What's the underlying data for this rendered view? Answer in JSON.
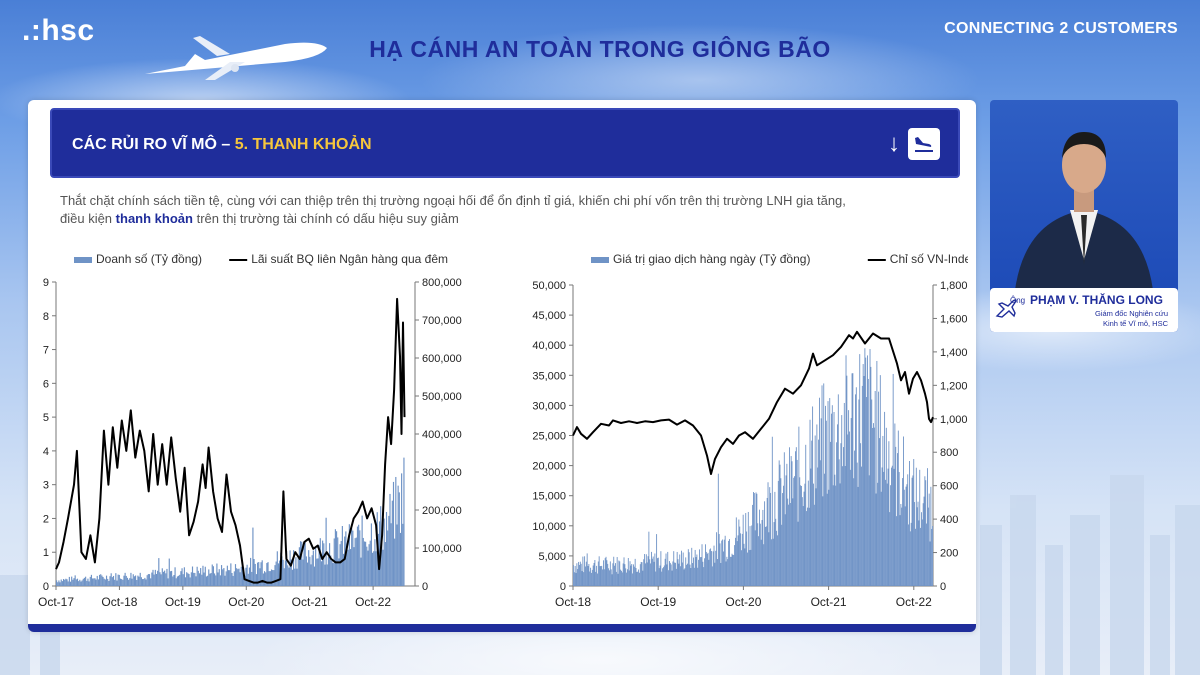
{
  "header": {
    "logo": ".:hsc",
    "title": "HẠ CÁNH AN TOÀN TRONG GIÔNG BÃO",
    "brand": "CONNECTING 2 CUSTOMERS"
  },
  "slide": {
    "banner_prefix": "CÁC RỦI RO VĨ MÔ –",
    "banner_highlight": "5. THANH KHOẢN",
    "desc_line1": "Thắt chặt chính sách tiền tệ, cùng với can thiệp trên thị trường ngoại hối để ổn định tỉ giá, khiến chi phí vốn trên thị trường LNH gia tăng,",
    "desc_line2_a": "điều kiện",
    "desc_line2_bold": "thanh khoản",
    "desc_line2_b": "trên thị trường tài chính có dấu hiệu suy giảm"
  },
  "speaker": {
    "honorific": "Ông",
    "name": "PHẠM V. THĂNG LONG",
    "role_line1": "Giám đốc Nghiên cứu",
    "role_line2": "Kinh tế Vĩ mô, HSC"
  },
  "colors": {
    "navy": "#1f2d9b",
    "bar": "#6f93c6",
    "line": "#000000",
    "highlight": "#f6c63c"
  },
  "chart_data": [
    {
      "type": "bar+line",
      "legend": [
        "Doanh số (Tỷ đồng)",
        "Lãi suất BQ liên Ngân hàng qua đêm"
      ],
      "x_ticks": [
        "Oct-17",
        "Oct-18",
        "Oct-19",
        "Oct-20",
        "Oct-21",
        "Oct-22"
      ],
      "y_left": {
        "min": 0,
        "max": 9,
        "ticks": [
          "0",
          "1",
          "2",
          "3",
          "4",
          "5",
          "6",
          "7",
          "8",
          "9"
        ]
      },
      "y_right": {
        "min": 0,
        "max": 800000,
        "ticks": [
          "0",
          "100,000",
          "200,000",
          "300,000",
          "400,000",
          "500,000",
          "600,000",
          "700,000",
          "800,000"
        ]
      },
      "line_series": {
        "name": "Lãi suất BQ liên Ngân hàng qua đêm",
        "axis": "left",
        "points": [
          [
            0,
            0.5
          ],
          [
            0.1,
            0.7
          ],
          [
            0.25,
            1.3
          ],
          [
            0.4,
            2.0
          ],
          [
            0.6,
            3.0
          ],
          [
            0.7,
            4.0
          ],
          [
            0.85,
            1.0
          ],
          [
            1.0,
            0.8
          ],
          [
            1.15,
            1.5
          ],
          [
            1.3,
            0.7
          ],
          [
            1.45,
            2.0
          ],
          [
            1.6,
            4.6
          ],
          [
            1.75,
            3.0
          ],
          [
            1.9,
            4.7
          ],
          [
            2.05,
            3.5
          ],
          [
            2.2,
            4.9
          ],
          [
            2.35,
            4.0
          ],
          [
            2.5,
            5.2
          ],
          [
            2.65,
            3.8
          ],
          [
            2.8,
            4.6
          ],
          [
            2.95,
            4.0
          ],
          [
            3.1,
            2.8
          ],
          [
            3.25,
            4.5
          ],
          [
            3.4,
            3.0
          ],
          [
            3.55,
            4.2
          ],
          [
            3.7,
            3.0
          ],
          [
            3.85,
            4.4
          ],
          [
            4.0,
            3.2
          ],
          [
            4.15,
            2.2
          ],
          [
            4.3,
            3.5
          ],
          [
            4.45,
            1.5
          ],
          [
            4.6,
            1.9
          ],
          [
            4.75,
            2.5
          ],
          [
            4.9,
            3.6
          ],
          [
            5.0,
            2.9
          ],
          [
            5.1,
            4.1
          ],
          [
            5.25,
            2.8
          ],
          [
            5.4,
            2.0
          ],
          [
            5.55,
            1.6
          ],
          [
            5.7,
            3.3
          ],
          [
            5.85,
            2.2
          ],
          [
            6.0,
            1.8
          ],
          [
            6.15,
            1.2
          ],
          [
            6.3,
            0.2
          ],
          [
            6.45,
            0.15
          ],
          [
            6.6,
            0.1
          ],
          [
            6.75,
            0.1
          ],
          [
            6.9,
            0.15
          ],
          [
            7.05,
            0.1
          ],
          [
            7.2,
            0.1
          ],
          [
            7.35,
            0.15
          ],
          [
            7.5,
            0.2
          ],
          [
            7.6,
            2.8
          ],
          [
            7.7,
            0.8
          ],
          [
            7.85,
            0.6
          ],
          [
            8.0,
            1.0
          ],
          [
            8.15,
            0.8
          ],
          [
            8.3,
            1.3
          ],
          [
            8.45,
            1.4
          ],
          [
            8.6,
            1.1
          ],
          [
            8.75,
            1.2
          ],
          [
            8.9,
            0.8
          ],
          [
            9.05,
            1.0
          ],
          [
            9.2,
            0.8
          ],
          [
            9.35,
            0.7
          ],
          [
            9.5,
            0.7
          ],
          [
            9.65,
            0.8
          ],
          [
            9.8,
            1.5
          ],
          [
            9.95,
            2.0
          ],
          [
            10.1,
            2.2
          ],
          [
            10.25,
            2.5
          ],
          [
            10.4,
            2.0
          ],
          [
            10.55,
            2.3
          ],
          [
            10.7,
            1.8
          ],
          [
            10.8,
            0.5
          ],
          [
            10.9,
            1.5
          ],
          [
            11.0,
            3.6
          ],
          [
            11.1,
            5.0
          ],
          [
            11.2,
            4.2
          ],
          [
            11.3,
            5.8
          ],
          [
            11.4,
            8.5
          ],
          [
            11.5,
            6.8
          ],
          [
            11.55,
            4.5
          ],
          [
            11.6,
            7.8
          ],
          [
            11.65,
            5.0
          ]
        ]
      },
      "bar_series": {
        "name": "Doanh số (Tỷ đồng)",
        "axis": "right",
        "profile": [
          [
            0,
            15000
          ],
          [
            1.0,
            20000
          ],
          [
            2.0,
            25000
          ],
          [
            3.0,
            30000
          ],
          [
            4.0,
            35000
          ],
          [
            5.0,
            40000
          ],
          [
            6.0,
            45000
          ],
          [
            7.0,
            60000
          ],
          [
            8.0,
            80000
          ],
          [
            9.0,
            100000
          ],
          [
            10.0,
            120000
          ],
          [
            11.0,
            160000
          ],
          [
            11.5,
            220000
          ],
          [
            11.65,
            280000
          ]
        ]
      }
    },
    {
      "type": "area+line",
      "legend": [
        "Giá trị giao dịch hàng ngày (Tỷ đồng)",
        "Chỉ số VN-Index"
      ],
      "x_ticks": [
        "Oct-18",
        "Oct-19",
        "Oct-20",
        "Oct-21",
        "Oct-22"
      ],
      "y_left": {
        "min": 0,
        "max": 50000,
        "ticks": [
          "0",
          "5,000",
          "10,000",
          "15,000",
          "20,000",
          "25,000",
          "30,000",
          "35,000",
          "40,000",
          "45,000",
          "50,000"
        ]
      },
      "y_right": {
        "min": 0,
        "max": 1800,
        "ticks": [
          "0",
          "200",
          "400",
          "600",
          "800",
          "1,000",
          "1,200",
          "1,400",
          "1,600",
          "1,800"
        ]
      },
      "line_series": {
        "name": "Chỉ số VN-Index",
        "axis": "right",
        "points": [
          [
            0,
            900
          ],
          [
            0.1,
            950
          ],
          [
            0.2,
            910
          ],
          [
            0.35,
            880
          ],
          [
            0.5,
            920
          ],
          [
            0.7,
            970
          ],
          [
            0.9,
            960
          ],
          [
            1.0,
            990
          ],
          [
            1.2,
            975
          ],
          [
            1.4,
            985
          ],
          [
            1.6,
            975
          ],
          [
            1.8,
            985
          ],
          [
            2.0,
            980
          ],
          [
            2.2,
            990
          ],
          [
            2.4,
            995
          ],
          [
            2.6,
            965
          ],
          [
            2.8,
            990
          ],
          [
            3.0,
            960
          ],
          [
            3.2,
            900
          ],
          [
            3.35,
            780
          ],
          [
            3.45,
            670
          ],
          [
            3.55,
            760
          ],
          [
            3.7,
            830
          ],
          [
            3.85,
            880
          ],
          [
            4.0,
            850
          ],
          [
            4.15,
            900
          ],
          [
            4.3,
            920
          ],
          [
            4.5,
            880
          ],
          [
            4.7,
            940
          ],
          [
            4.9,
            1000
          ],
          [
            5.1,
            1100
          ],
          [
            5.3,
            1180
          ],
          [
            5.5,
            1150
          ],
          [
            5.7,
            1200
          ],
          [
            5.9,
            1300
          ],
          [
            6.0,
            1390
          ],
          [
            6.1,
            1320
          ],
          [
            6.3,
            1350
          ],
          [
            6.5,
            1380
          ],
          [
            6.7,
            1430
          ],
          [
            6.9,
            1500
          ],
          [
            7.0,
            1480
          ],
          [
            7.1,
            1520
          ],
          [
            7.3,
            1450
          ],
          [
            7.5,
            1510
          ],
          [
            7.7,
            1480
          ],
          [
            7.9,
            1480
          ],
          [
            8.1,
            1330
          ],
          [
            8.2,
            1230
          ],
          [
            8.3,
            1280
          ],
          [
            8.4,
            1150
          ],
          [
            8.5,
            1240
          ],
          [
            8.6,
            1280
          ],
          [
            8.7,
            1230
          ],
          [
            8.8,
            1150
          ],
          [
            8.85,
            1100
          ],
          [
            8.9,
            1000
          ],
          [
            8.95,
            980
          ],
          [
            9.0,
            1010
          ]
        ]
      },
      "area_series": {
        "name": "Giá trị giao dịch hàng ngày (Tỷ đồng)",
        "axis": "left",
        "profile": [
          [
            0,
            3500
          ],
          [
            1.0,
            3500
          ],
          [
            2.0,
            4000
          ],
          [
            3.0,
            4500
          ],
          [
            3.5,
            6000
          ],
          [
            4.0,
            8000
          ],
          [
            4.5,
            11000
          ],
          [
            5.0,
            14000
          ],
          [
            5.5,
            17000
          ],
          [
            6.0,
            22000
          ],
          [
            6.5,
            25000
          ],
          [
            7.0,
            28000
          ],
          [
            7.3,
            30000
          ],
          [
            7.6,
            26000
          ],
          [
            8.0,
            20000
          ],
          [
            8.5,
            15000
          ],
          [
            9.0,
            13000
          ]
        ]
      }
    }
  ]
}
